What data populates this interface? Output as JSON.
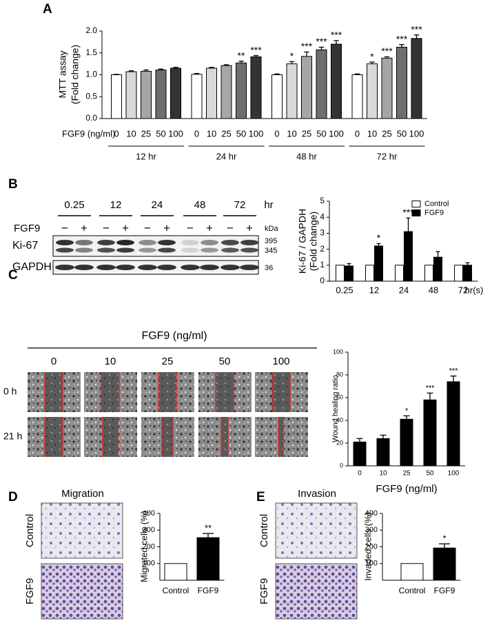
{
  "panel_labels": [
    "A",
    "B",
    "C",
    "D",
    "E"
  ],
  "blot": {
    "times": [
      "0.25",
      "12",
      "24",
      "48",
      "72"
    ],
    "unit": "hr",
    "treatment": "FGF9",
    "lane_signs": [
      "−",
      "+"
    ],
    "kda_label": "kDa",
    "rows": [
      {
        "name": "Ki-67",
        "kda": [
          395,
          345
        ]
      },
      {
        "name": "GAPDH",
        "kda": [
          36
        ]
      }
    ]
  },
  "wound": {
    "header": "FGF9 (ng/ml)",
    "doses": [
      "0",
      "10",
      "25",
      "50",
      "100"
    ],
    "times": [
      "0 h",
      "21 h"
    ]
  },
  "transwell": [
    {
      "title": "Migration",
      "rows": [
        "Control",
        "FGF9"
      ]
    },
    {
      "title": "Invasion",
      "rows": [
        "Control",
        "FGF9"
      ]
    }
  ],
  "chart_data": [
    {
      "type": "bar",
      "ylabel": [
        "MTT assay",
        "(Fold change)"
      ],
      "xlabel": "FGF9 (ng/ml)",
      "categories": [
        "12 hr",
        "24 hr",
        "48 hr",
        "72 hr"
      ],
      "series": [
        {
          "name": "0",
          "color": "#ffffff",
          "values": [
            1.0,
            1.01,
            1.0,
            1.0
          ],
          "errors": [
            0.01,
            0.02,
            0.02,
            0.02
          ],
          "annotations": [
            null,
            null,
            null,
            null
          ]
        },
        {
          "name": "10",
          "color": "#d9d9d9",
          "values": [
            1.07,
            1.15,
            1.25,
            1.25
          ],
          "errors": [
            0.02,
            0.02,
            0.05,
            0.04
          ],
          "annotations": [
            null,
            null,
            "*",
            "*"
          ]
        },
        {
          "name": "25",
          "color": "#a6a6a6",
          "values": [
            1.08,
            1.21,
            1.42,
            1.38
          ],
          "errors": [
            0.03,
            0.02,
            0.1,
            0.03
          ],
          "annotations": [
            null,
            null,
            "***",
            "***"
          ]
        },
        {
          "name": "50",
          "color": "#6e6e6e",
          "values": [
            1.11,
            1.27,
            1.57,
            1.63
          ],
          "errors": [
            0.02,
            0.04,
            0.06,
            0.06
          ],
          "annotations": [
            null,
            "**",
            "***",
            "***"
          ]
        },
        {
          "name": "100",
          "color": "#333333",
          "values": [
            1.15,
            1.41,
            1.7,
            1.83
          ],
          "errors": [
            0.02,
            0.03,
            0.08,
            0.08
          ],
          "annotations": [
            null,
            "***",
            "***",
            "***"
          ]
        }
      ],
      "ylim": [
        0,
        2
      ],
      "yticks": [
        {
          "value": 0,
          "label": "0.0"
        },
        0.5,
        {
          "value": 1,
          "label": "1.0"
        },
        1.5,
        {
          "value": 2,
          "label": "2.0"
        }
      ]
    },
    {
      "type": "bar",
      "ylabel": [
        "Ki-67 / GAPDH",
        "(Fold change)"
      ],
      "xlabel": "hr(s)",
      "categories": [
        "0.25",
        "12",
        "24",
        "48",
        "72"
      ],
      "series": [
        {
          "name": "Control",
          "color": "#ffffff",
          "values": [
            1,
            1,
            1,
            1,
            1
          ]
        },
        {
          "name": "FGF9",
          "color": "#000000",
          "values": [
            0.95,
            2.2,
            3.1,
            1.5,
            1.0
          ],
          "errors": [
            0.15,
            0.15,
            0.85,
            0.35,
            0.15
          ],
          "annotations": [
            null,
            "*",
            "***",
            null,
            null
          ]
        }
      ],
      "ylim": [
        0,
        5
      ],
      "yticks": [
        0,
        1,
        2,
        3,
        4,
        5
      ],
      "legend": "upper right"
    },
    {
      "type": "bar",
      "ylabel": "Wound healing ratio",
      "xlabel": "FGF9 (ng/ml)",
      "categories": [
        "0",
        "10",
        "25",
        "50",
        "100"
      ],
      "values": [
        21,
        24,
        41,
        58,
        74
      ],
      "errors": [
        3,
        3,
        3,
        6,
        5
      ],
      "annotations": [
        null,
        null,
        "*",
        "***",
        "***"
      ],
      "color": "#000000",
      "ylim": [
        0,
        100
      ],
      "yticks": [
        0,
        20,
        40,
        60,
        80,
        100
      ]
    },
    {
      "type": "bar",
      "ylabel": "Migrated cells (%)",
      "categories": [
        "Control",
        "FGF9"
      ],
      "values": [
        100,
        255
      ],
      "errors": [
        null,
        25
      ],
      "annotations": [
        null,
        "**"
      ],
      "colors": [
        "#ffffff",
        "#000000"
      ],
      "ylim": [
        0,
        400
      ],
      "yticks": [
        100,
        200,
        300,
        400
      ]
    },
    {
      "type": "bar",
      "ylabel": "Invaded cells (%)",
      "categories": [
        "Control",
        "FGF9"
      ],
      "values": [
        100,
        193
      ],
      "errors": [
        null,
        25
      ],
      "annotations": [
        null,
        "*"
      ],
      "colors": [
        "#ffffff",
        "#000000"
      ],
      "ylim": [
        0,
        400
      ],
      "yticks": [
        100,
        200,
        300,
        400
      ]
    }
  ]
}
